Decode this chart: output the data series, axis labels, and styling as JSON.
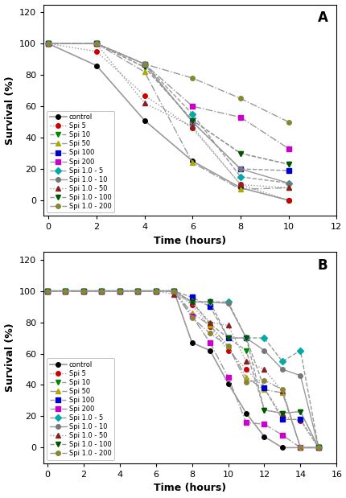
{
  "panel_A": {
    "title": "A",
    "xlabel": "Time (hours)",
    "ylabel": "Survival (%)",
    "xlim": [
      -0.2,
      12
    ],
    "ylim": [
      -10,
      125
    ],
    "xticks": [
      0,
      2,
      4,
      6,
      8,
      10,
      12
    ],
    "yticks": [
      0,
      20,
      40,
      60,
      80,
      100,
      120
    ],
    "series": {
      "control": {
        "x": [
          0,
          2,
          4,
          6,
          8,
          10
        ],
        "y": [
          100,
          86,
          51,
          25,
          8,
          0
        ],
        "color": "#000000",
        "linestyle": "-",
        "marker": "o",
        "markersize": 4,
        "lw": 1.2
      },
      "Spi 5": {
        "x": [
          0,
          2,
          4,
          6,
          8,
          10
        ],
        "y": [
          100,
          95,
          67,
          46,
          10,
          0
        ],
        "color": "#cc0000",
        "linestyle": ":",
        "marker": "o",
        "markersize": 4,
        "lw": 1.0
      },
      "Spi 10": {
        "x": [
          0,
          2,
          4,
          6,
          8,
          10
        ],
        "y": [
          100,
          100,
          85,
          51,
          30,
          23
        ],
        "color": "#008800",
        "linestyle": "--",
        "marker": "v",
        "markersize": 5,
        "lw": 1.0
      },
      "Spi 50": {
        "x": [
          0,
          2,
          4,
          6,
          8,
          10
        ],
        "y": [
          100,
          100,
          82,
          24,
          7,
          8
        ],
        "color": "#aaaa00",
        "linestyle": "-.",
        "marker": "^",
        "markersize": 5,
        "lw": 1.0
      },
      "Spi 100": {
        "x": [
          0,
          2,
          4,
          6,
          8,
          10
        ],
        "y": [
          100,
          100,
          87,
          50,
          20,
          19
        ],
        "color": "#0000cc",
        "linestyle": "--",
        "marker": "s",
        "markersize": 4,
        "lw": 1.0
      },
      "Spi 200": {
        "x": [
          0,
          2,
          4,
          6,
          8,
          10
        ],
        "y": [
          100,
          100,
          87,
          60,
          53,
          33
        ],
        "color": "#cc00cc",
        "linestyle": "-.",
        "marker": "s",
        "markersize": 4,
        "lw": 1.0
      },
      "Spi 1.0 - 5": {
        "x": [
          0,
          2,
          4,
          6,
          8,
          10
        ],
        "y": [
          100,
          100,
          87,
          55,
          15,
          11
        ],
        "color": "#00aaaa",
        "linestyle": "--",
        "marker": "D",
        "markersize": 4,
        "lw": 1.0
      },
      "Spi 1.0 - 10": {
        "x": [
          0,
          2,
          4,
          6,
          8,
          10
        ],
        "y": [
          100,
          100,
          87,
          50,
          20,
          11
        ],
        "color": "#777777",
        "linestyle": "-",
        "marker": "o",
        "markersize": 4,
        "lw": 1.0
      },
      "Spi 1.0 - 50": {
        "x": [
          0,
          2,
          4,
          6,
          8,
          10
        ],
        "y": [
          100,
          100,
          62,
          47,
          10,
          8
        ],
        "color": "#882222",
        "linestyle": ":",
        "marker": "^",
        "markersize": 5,
        "lw": 1.0
      },
      "Spi 1.0 - 100": {
        "x": [
          0,
          2,
          4,
          6,
          8,
          10
        ],
        "y": [
          100,
          100,
          85,
          51,
          30,
          23
        ],
        "color": "#005500",
        "linestyle": "--",
        "marker": "v",
        "markersize": 5,
        "lw": 1.0
      },
      "Spi 1.0 - 200": {
        "x": [
          0,
          2,
          4,
          6,
          8,
          10
        ],
        "y": [
          100,
          100,
          87,
          78,
          65,
          50
        ],
        "color": "#888833",
        "linestyle": "-.",
        "marker": "o",
        "markersize": 4,
        "lw": 1.0
      }
    }
  },
  "panel_B": {
    "title": "B",
    "xlabel": "Time (hours)",
    "ylabel": "Survival (%)",
    "xlim": [
      -0.2,
      16
    ],
    "ylim": [
      -10,
      125
    ],
    "xticks": [
      0,
      2,
      4,
      6,
      8,
      10,
      12,
      14,
      16
    ],
    "yticks": [
      0,
      20,
      40,
      60,
      80,
      100,
      120
    ],
    "series": {
      "control": {
        "x": [
          0,
          1,
          2,
          3,
          4,
          5,
          6,
          7,
          8,
          9,
          10,
          11,
          12,
          13,
          14,
          15
        ],
        "y": [
          100,
          100,
          100,
          100,
          100,
          100,
          100,
          100,
          67,
          62,
          41,
          22,
          7,
          0,
          0,
          0
        ],
        "color": "#000000",
        "linestyle": "-",
        "marker": "o",
        "markersize": 4,
        "lw": 1.2
      },
      "Spi 5": {
        "x": [
          0,
          1,
          2,
          3,
          4,
          5,
          6,
          7,
          8,
          9,
          10,
          11,
          12,
          13,
          14,
          15
        ],
        "y": [
          100,
          100,
          100,
          100,
          100,
          100,
          100,
          100,
          91,
          77,
          62,
          50,
          38,
          20,
          17,
          0
        ],
        "color": "#cc0000",
        "linestyle": ":",
        "marker": "o",
        "markersize": 4,
        "lw": 1.0
      },
      "Spi 10": {
        "x": [
          0,
          1,
          2,
          3,
          4,
          5,
          6,
          7,
          8,
          9,
          10,
          11,
          12,
          13,
          14,
          15
        ],
        "y": [
          100,
          100,
          100,
          100,
          100,
          100,
          100,
          100,
          93,
          79,
          70,
          62,
          24,
          22,
          23,
          0
        ],
        "color": "#008800",
        "linestyle": "--",
        "marker": "v",
        "markersize": 5,
        "lw": 1.0
      },
      "Spi 50": {
        "x": [
          0,
          1,
          2,
          3,
          4,
          5,
          6,
          7,
          8,
          9,
          10,
          11,
          12,
          13,
          14,
          15
        ],
        "y": [
          100,
          100,
          100,
          100,
          100,
          100,
          100,
          100,
          86,
          78,
          65,
          45,
          37,
          35,
          0,
          0
        ],
        "color": "#aaaa00",
        "linestyle": "-.",
        "marker": "^",
        "markersize": 5,
        "lw": 1.0
      },
      "Spi 100": {
        "x": [
          0,
          1,
          2,
          3,
          4,
          5,
          6,
          7,
          8,
          9,
          10,
          11,
          12,
          13,
          14,
          15
        ],
        "y": [
          100,
          100,
          100,
          100,
          100,
          100,
          100,
          100,
          96,
          90,
          70,
          70,
          38,
          18,
          18,
          0
        ],
        "color": "#0000cc",
        "linestyle": "--",
        "marker": "s",
        "markersize": 4,
        "lw": 1.0
      },
      "Spi 200": {
        "x": [
          0,
          1,
          2,
          3,
          4,
          5,
          6,
          7,
          8,
          9,
          10,
          11,
          12,
          13,
          14,
          15
        ],
        "y": [
          100,
          100,
          100,
          100,
          100,
          100,
          100,
          100,
          84,
          67,
          45,
          16,
          15,
          8,
          0,
          0
        ],
        "color": "#cc00cc",
        "linestyle": "-.",
        "marker": "s",
        "markersize": 4,
        "lw": 1.0
      },
      "Spi 1.0 - 5": {
        "x": [
          0,
          1,
          2,
          3,
          4,
          5,
          6,
          7,
          8,
          9,
          10,
          11,
          12,
          13,
          14,
          15
        ],
        "y": [
          100,
          100,
          100,
          100,
          100,
          100,
          100,
          100,
          93,
          93,
          93,
          70,
          70,
          55,
          62,
          0
        ],
        "color": "#00aaaa",
        "linestyle": "--",
        "marker": "D",
        "markersize": 4,
        "lw": 1.0
      },
      "Spi 1.0 - 10": {
        "x": [
          0,
          1,
          2,
          3,
          4,
          5,
          6,
          7,
          8,
          9,
          10,
          11,
          12,
          13,
          14,
          15
        ],
        "y": [
          100,
          100,
          100,
          100,
          100,
          100,
          100,
          100,
          93,
          93,
          92,
          70,
          62,
          50,
          46,
          0
        ],
        "color": "#777777",
        "linestyle": "-",
        "marker": "o",
        "markersize": 4,
        "lw": 1.0
      },
      "Spi 1.0 - 50": {
        "x": [
          0,
          1,
          2,
          3,
          4,
          5,
          6,
          7,
          8,
          9,
          10,
          11,
          12,
          13,
          14,
          15
        ],
        "y": [
          100,
          100,
          100,
          100,
          100,
          100,
          100,
          98,
          93,
          80,
          78,
          55,
          50,
          36,
          0,
          0
        ],
        "color": "#882222",
        "linestyle": ":",
        "marker": "^",
        "markersize": 5,
        "lw": 1.0
      },
      "Spi 1.0 - 100": {
        "x": [
          0,
          1,
          2,
          3,
          4,
          5,
          6,
          7,
          8,
          9,
          10,
          11,
          12,
          13,
          14,
          15
        ],
        "y": [
          100,
          100,
          100,
          100,
          100,
          100,
          100,
          100,
          93,
          93,
          70,
          70,
          24,
          22,
          23,
          0
        ],
        "color": "#005500",
        "linestyle": "--",
        "marker": "v",
        "markersize": 5,
        "lw": 1.0
      },
      "Spi 1.0 - 200": {
        "x": [
          0,
          1,
          2,
          3,
          4,
          5,
          6,
          7,
          8,
          9,
          10,
          11,
          12,
          13,
          14,
          15
        ],
        "y": [
          100,
          100,
          100,
          100,
          100,
          100,
          100,
          100,
          83,
          73,
          65,
          42,
          43,
          37,
          0,
          0
        ],
        "color": "#888833",
        "linestyle": "-.",
        "marker": "o",
        "markersize": 4,
        "lw": 1.0
      }
    }
  },
  "legend_order": [
    "control",
    "Spi 5",
    "Spi 10",
    "Spi 50",
    "Spi 100",
    "Spi 200",
    "Spi 1.0 - 5",
    "Spi 1.0 - 10",
    "Spi 1.0 - 50",
    "Spi 1.0 - 100",
    "Spi 1.0 - 200"
  ]
}
